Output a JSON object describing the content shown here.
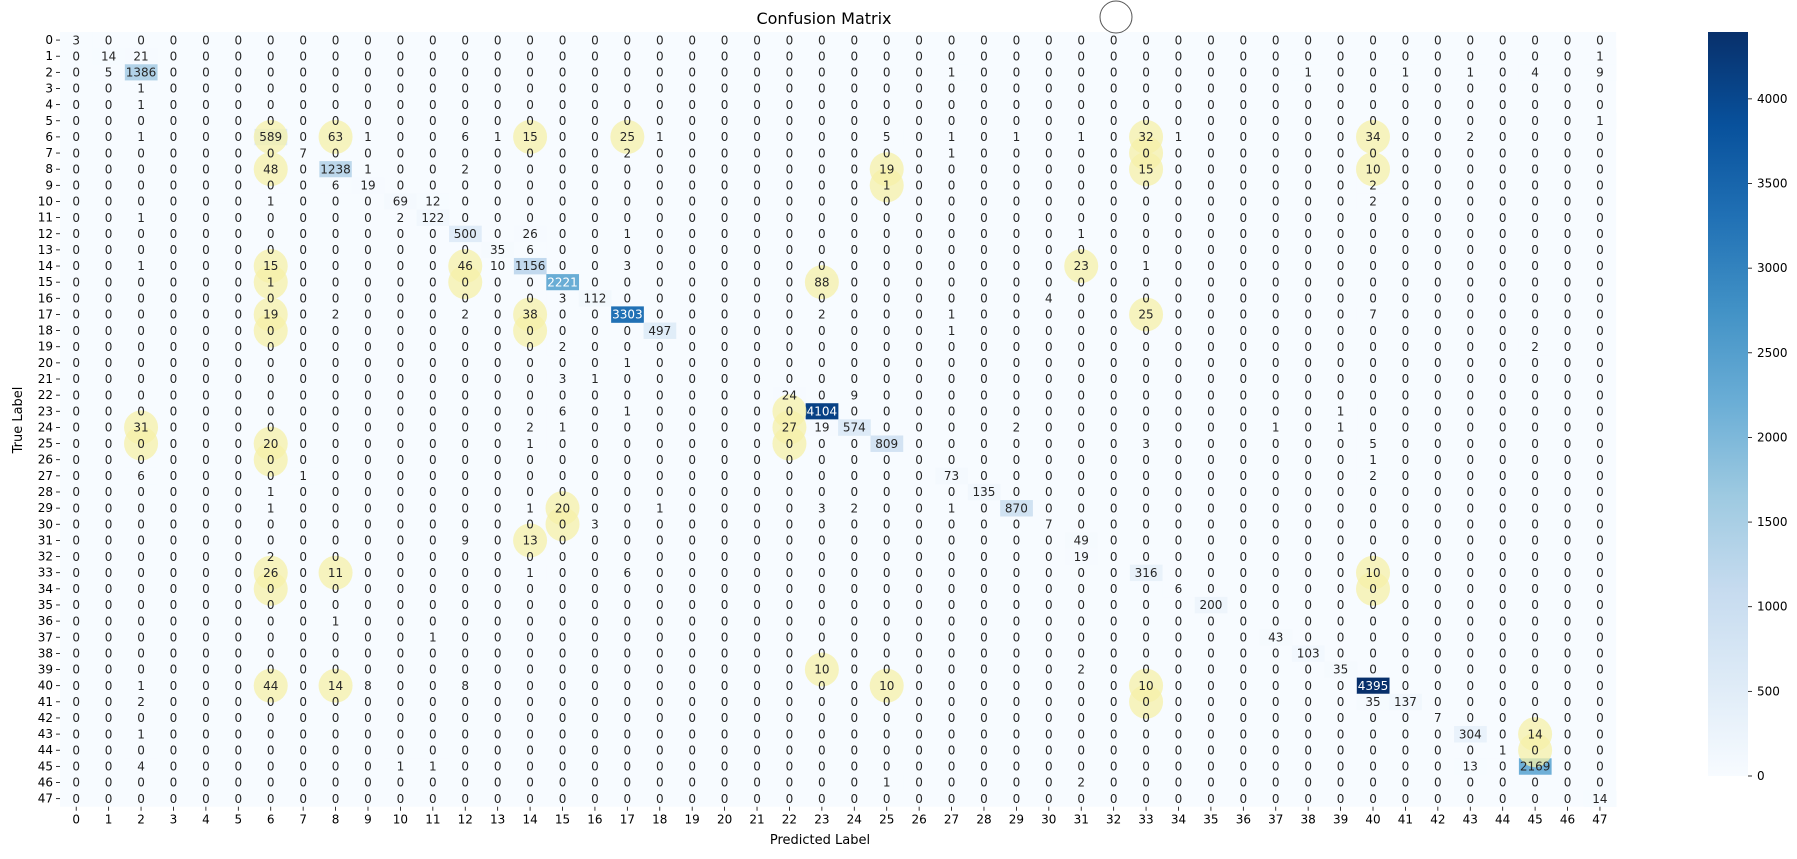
{
  "chart_data": {
    "type": "heatmap",
    "title": "Confusion Matrix",
    "xlabel": "Predicted Label",
    "ylabel": "True Label",
    "labels": [
      "0",
      "1",
      "2",
      "3",
      "4",
      "5",
      "6",
      "7",
      "8",
      "9",
      "10",
      "11",
      "12",
      "13",
      "14",
      "15",
      "16",
      "17",
      "18",
      "19",
      "20",
      "21",
      "22",
      "23",
      "24",
      "25",
      "26",
      "27",
      "28",
      "29",
      "30",
      "31",
      "32",
      "33",
      "34",
      "35",
      "36",
      "37",
      "38",
      "39",
      "40",
      "41",
      "42",
      "43",
      "44",
      "45",
      "46",
      "47"
    ],
    "colormap": "Blues",
    "color_range": [
      0,
      4395
    ],
    "colorbar_ticks": [
      0,
      500,
      1000,
      1500,
      2000,
      2500,
      3000,
      3500,
      4000
    ],
    "colorbar_tick_labels": [
      "0",
      "500",
      "1000",
      "1500",
      "2000",
      "2500",
      "3000",
      "3500",
      "4000"
    ],
    "colors": {
      "low": "#f7fbff",
      "high": "#08306b",
      "highlight": "#f5f0a8",
      "text_dark": "#262626",
      "text_light": "#ffffff"
    },
    "highlighted_cells": [
      [
        6,
        6
      ],
      [
        6,
        8
      ],
      [
        6,
        14
      ],
      [
        6,
        17
      ],
      [
        6,
        33
      ],
      [
        6,
        40
      ],
      [
        7,
        33
      ],
      [
        8,
        6
      ],
      [
        8,
        25
      ],
      [
        8,
        33
      ],
      [
        8,
        40
      ],
      [
        9,
        25
      ],
      [
        14,
        6
      ],
      [
        14,
        12
      ],
      [
        14,
        31
      ],
      [
        15,
        6
      ],
      [
        15,
        12
      ],
      [
        15,
        23
      ],
      [
        17,
        6
      ],
      [
        17,
        14
      ],
      [
        17,
        33
      ],
      [
        18,
        6
      ],
      [
        18,
        14
      ],
      [
        23,
        22
      ],
      [
        24,
        2
      ],
      [
        24,
        22
      ],
      [
        25,
        2
      ],
      [
        25,
        6
      ],
      [
        25,
        22
      ],
      [
        26,
        6
      ],
      [
        29,
        15
      ],
      [
        30,
        15
      ],
      [
        31,
        14
      ],
      [
        33,
        6
      ],
      [
        33,
        8
      ],
      [
        33,
        40
      ],
      [
        34,
        6
      ],
      [
        34,
        40
      ],
      [
        39,
        23
      ],
      [
        40,
        6
      ],
      [
        40,
        8
      ],
      [
        40,
        25
      ],
      [
        40,
        33
      ],
      [
        41,
        33
      ],
      [
        43,
        45
      ],
      [
        44,
        45
      ]
    ],
    "cells": [
      [
        0,
        0,
        3
      ],
      [
        1,
        1,
        14
      ],
      [
        1,
        2,
        21
      ],
      [
        1,
        47,
        1
      ],
      [
        2,
        1,
        5
      ],
      [
        2,
        2,
        1386
      ],
      [
        2,
        27,
        1
      ],
      [
        2,
        38,
        1
      ],
      [
        2,
        41,
        1
      ],
      [
        2,
        43,
        1
      ],
      [
        2,
        45,
        4
      ],
      [
        2,
        47,
        9
      ],
      [
        3,
        2,
        1
      ],
      [
        4,
        2,
        1
      ],
      [
        5,
        47,
        1
      ],
      [
        6,
        2,
        1
      ],
      [
        6,
        6,
        589
      ],
      [
        6,
        8,
        63
      ],
      [
        6,
        9,
        1
      ],
      [
        6,
        12,
        6
      ],
      [
        6,
        13,
        1
      ],
      [
        6,
        14,
        15
      ],
      [
        6,
        17,
        25
      ],
      [
        6,
        18,
        1
      ],
      [
        6,
        25,
        5
      ],
      [
        6,
        27,
        1
      ],
      [
        6,
        29,
        1
      ],
      [
        6,
        31,
        1
      ],
      [
        6,
        33,
        32
      ],
      [
        6,
        34,
        1
      ],
      [
        6,
        40,
        34
      ],
      [
        6,
        43,
        2
      ],
      [
        7,
        7,
        7
      ],
      [
        7,
        17,
        2
      ],
      [
        7,
        27,
        1
      ],
      [
        8,
        6,
        48
      ],
      [
        8,
        8,
        1238
      ],
      [
        8,
        9,
        1
      ],
      [
        8,
        12,
        2
      ],
      [
        8,
        25,
        19
      ],
      [
        8,
        33,
        15
      ],
      [
        8,
        40,
        10
      ],
      [
        9,
        8,
        6
      ],
      [
        9,
        9,
        19
      ],
      [
        9,
        25,
        1
      ],
      [
        9,
        40,
        2
      ],
      [
        10,
        6,
        1
      ],
      [
        10,
        10,
        69
      ],
      [
        10,
        11,
        12
      ],
      [
        10,
        40,
        2
      ],
      [
        11,
        2,
        1
      ],
      [
        11,
        10,
        2
      ],
      [
        11,
        11,
        122
      ],
      [
        12,
        12,
        500
      ],
      [
        12,
        14,
        26
      ],
      [
        12,
        17,
        1
      ],
      [
        12,
        31,
        1
      ],
      [
        13,
        13,
        35
      ],
      [
        13,
        14,
        6
      ],
      [
        14,
        2,
        1
      ],
      [
        14,
        6,
        15
      ],
      [
        14,
        12,
        46
      ],
      [
        14,
        13,
        10
      ],
      [
        14,
        14,
        1156
      ],
      [
        14,
        17,
        3
      ],
      [
        14,
        31,
        23
      ],
      [
        14,
        33,
        1
      ],
      [
        15,
        6,
        1
      ],
      [
        15,
        15,
        2221
      ],
      [
        15,
        23,
        88
      ],
      [
        16,
        15,
        3
      ],
      [
        16,
        16,
        112
      ],
      [
        16,
        30,
        4
      ],
      [
        17,
        6,
        19
      ],
      [
        17,
        8,
        2
      ],
      [
        17,
        12,
        2
      ],
      [
        17,
        14,
        38
      ],
      [
        17,
        17,
        3303
      ],
      [
        17,
        23,
        2
      ],
      [
        17,
        27,
        1
      ],
      [
        17,
        33,
        25
      ],
      [
        17,
        40,
        7
      ],
      [
        18,
        18,
        497
      ],
      [
        18,
        27,
        1
      ],
      [
        19,
        15,
        2
      ],
      [
        19,
        45,
        2
      ],
      [
        20,
        17,
        1
      ],
      [
        21,
        15,
        3
      ],
      [
        21,
        16,
        1
      ],
      [
        22,
        22,
        24
      ],
      [
        22,
        24,
        9
      ],
      [
        23,
        15,
        6
      ],
      [
        23,
        17,
        1
      ],
      [
        23,
        23,
        4104
      ],
      [
        23,
        39,
        1
      ],
      [
        24,
        2,
        31
      ],
      [
        24,
        14,
        2
      ],
      [
        24,
        15,
        1
      ],
      [
        24,
        22,
        27
      ],
      [
        24,
        23,
        19
      ],
      [
        24,
        24,
        574
      ],
      [
        24,
        29,
        2
      ],
      [
        24,
        37,
        1
      ],
      [
        24,
        39,
        1
      ],
      [
        25,
        6,
        20
      ],
      [
        25,
        14,
        1
      ],
      [
        25,
        25,
        809
      ],
      [
        25,
        33,
        3
      ],
      [
        25,
        40,
        5
      ],
      [
        26,
        40,
        1
      ],
      [
        27,
        2,
        6
      ],
      [
        27,
        7,
        1
      ],
      [
        27,
        27,
        73
      ],
      [
        27,
        40,
        2
      ],
      [
        28,
        6,
        1
      ],
      [
        28,
        28,
        135
      ],
      [
        29,
        6,
        1
      ],
      [
        29,
        14,
        1
      ],
      [
        29,
        15,
        20
      ],
      [
        29,
        18,
        1
      ],
      [
        29,
        23,
        3
      ],
      [
        29,
        24,
        2
      ],
      [
        29,
        27,
        1
      ],
      [
        29,
        29,
        870
      ],
      [
        30,
        16,
        3
      ],
      [
        30,
        30,
        7
      ],
      [
        31,
        12,
        9
      ],
      [
        31,
        14,
        13
      ],
      [
        31,
        31,
        49
      ],
      [
        32,
        6,
        2
      ],
      [
        32,
        31,
        19
      ],
      [
        33,
        6,
        26
      ],
      [
        33,
        8,
        11
      ],
      [
        33,
        14,
        1
      ],
      [
        33,
        17,
        6
      ],
      [
        33,
        33,
        316
      ],
      [
        33,
        40,
        10
      ],
      [
        34,
        34,
        6
      ],
      [
        35,
        35,
        200
      ],
      [
        36,
        8,
        1
      ],
      [
        37,
        11,
        1
      ],
      [
        37,
        37,
        43
      ],
      [
        38,
        38,
        103
      ],
      [
        39,
        23,
        10
      ],
      [
        39,
        31,
        2
      ],
      [
        39,
        39,
        35
      ],
      [
        40,
        2,
        1
      ],
      [
        40,
        6,
        44
      ],
      [
        40,
        8,
        14
      ],
      [
        40,
        9,
        8
      ],
      [
        40,
        12,
        8
      ],
      [
        40,
        25,
        10
      ],
      [
        40,
        33,
        10
      ],
      [
        40,
        40,
        4395
      ],
      [
        41,
        2,
        2
      ],
      [
        41,
        40,
        35
      ],
      [
        41,
        41,
        137
      ],
      [
        42,
        42,
        7
      ],
      [
        43,
        2,
        1
      ],
      [
        43,
        43,
        304
      ],
      [
        43,
        45,
        14
      ],
      [
        44,
        44,
        1
      ],
      [
        45,
        2,
        4
      ],
      [
        45,
        10,
        1
      ],
      [
        45,
        11,
        1
      ],
      [
        45,
        43,
        13
      ],
      [
        45,
        45,
        2169
      ],
      [
        46,
        25,
        1
      ],
      [
        46,
        31,
        2
      ],
      [
        47,
        47,
        14
      ]
    ]
  }
}
